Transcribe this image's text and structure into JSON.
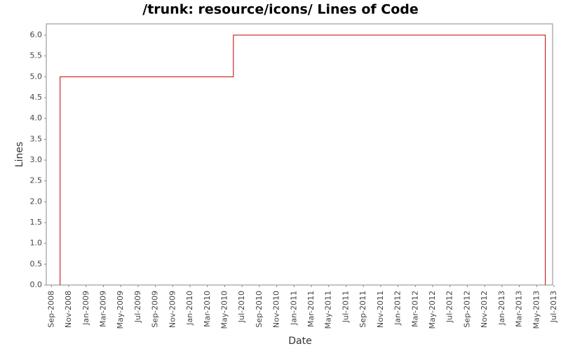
{
  "chart_data": {
    "type": "step",
    "title": "/trunk: resource/icons/ Lines of Code",
    "x_label": "Date",
    "y_label": "Lines",
    "x": [
      "2008-10",
      "2008-10",
      "2010-06",
      "2013-06",
      "2013-06"
    ],
    "series": [
      {
        "name": "Lines",
        "color": "#c00000",
        "values": [
          0,
          5,
          6,
          6,
          0
        ]
      }
    ],
    "xlim": [
      "2008-08",
      "2013-07"
    ],
    "xticks": [
      {
        "value": "2008-09",
        "label": "Sep-2008"
      },
      {
        "value": "2008-11",
        "label": "Nov-2008"
      },
      {
        "value": "2009-01",
        "label": "Jan-2009"
      },
      {
        "value": "2009-03",
        "label": "Mar-2009"
      },
      {
        "value": "2009-05",
        "label": "May-2009"
      },
      {
        "value": "2009-07",
        "label": "Jul-2009"
      },
      {
        "value": "2009-09",
        "label": "Sep-2009"
      },
      {
        "value": "2009-11",
        "label": "Nov-2009"
      },
      {
        "value": "2010-01",
        "label": "Jan-2010"
      },
      {
        "value": "2010-03",
        "label": "Mar-2010"
      },
      {
        "value": "2010-05",
        "label": "May-2010"
      },
      {
        "value": "2010-07",
        "label": "Jul-2010"
      },
      {
        "value": "2010-09",
        "label": "Sep-2010"
      },
      {
        "value": "2010-11",
        "label": "Nov-2010"
      },
      {
        "value": "2011-01",
        "label": "Jan-2011"
      },
      {
        "value": "2011-03",
        "label": "Mar-2011"
      },
      {
        "value": "2011-05",
        "label": "May-2011"
      },
      {
        "value": "2011-07",
        "label": "Jul-2011"
      },
      {
        "value": "2011-09",
        "label": "Sep-2011"
      },
      {
        "value": "2011-11",
        "label": "Nov-2011"
      },
      {
        "value": "2012-01",
        "label": "Jan-2012"
      },
      {
        "value": "2012-03",
        "label": "Mar-2012"
      },
      {
        "value": "2012-05",
        "label": "May-2012"
      },
      {
        "value": "2012-07",
        "label": "Jul-2012"
      },
      {
        "value": "2012-09",
        "label": "Sep-2012"
      },
      {
        "value": "2012-11",
        "label": "Nov-2012"
      },
      {
        "value": "2013-01",
        "label": "Jan-2013"
      },
      {
        "value": "2013-03",
        "label": "Mar-2013"
      },
      {
        "value": "2013-05",
        "label": "May-2013"
      },
      {
        "value": "2013-07",
        "label": "Jul-2013"
      }
    ],
    "ylim": [
      0,
      6.27
    ],
    "yticks": [
      {
        "value": 0,
        "label": "0.0"
      },
      0.5,
      {
        "value": 1,
        "label": "1.0"
      },
      1.5,
      {
        "value": 2,
        "label": "2.0"
      },
      2.5,
      {
        "value": 3,
        "label": "3.0"
      },
      3.5,
      {
        "value": 4,
        "label": "4.0"
      },
      4.5,
      {
        "value": 5,
        "label": "5.0"
      },
      5.5,
      {
        "value": 6,
        "label": "6.0"
      }
    ],
    "grid": false
  }
}
